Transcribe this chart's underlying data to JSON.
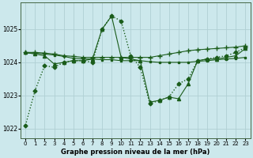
{
  "background_color": "#cce8ec",
  "grid_color": "#b0d0d4",
  "line_color": "#1a5c1a",
  "xlabel": "Graphe pression niveau de la mer (hPa)",
  "xlim": [
    -0.5,
    23.5
  ],
  "ylim": [
    1021.7,
    1025.8
  ],
  "yticks": [
    1022,
    1023,
    1024,
    1025
  ],
  "xticks": [
    0,
    1,
    2,
    3,
    4,
    5,
    6,
    7,
    8,
    9,
    10,
    11,
    12,
    13,
    14,
    15,
    16,
    17,
    18,
    19,
    20,
    21,
    22,
    23
  ],
  "series": [
    {
      "x": [
        0,
        1,
        2,
        3,
        4,
        5,
        6,
        7,
        8,
        9,
        10,
        11,
        12,
        13,
        14,
        15,
        16,
        17,
        18,
        19,
        20,
        21,
        22,
        23
      ],
      "y": [
        1022.1,
        1023.15,
        1023.9,
        1023.85,
        1024.0,
        1024.05,
        1024.05,
        1024.0,
        1025.0,
        1025.4,
        1025.25,
        1024.2,
        1023.85,
        1022.75,
        1022.85,
        1022.95,
        1023.35,
        1023.5,
        1024.05,
        1024.1,
        1024.15,
        1024.2,
        1024.3,
        1024.45
      ],
      "marker": "D",
      "markersize": 2.5,
      "linewidth": 1.0,
      "linestyle": ":"
    },
    {
      "x": [
        0,
        1,
        2,
        3,
        4,
        5,
        6,
        7,
        8,
        9,
        10,
        11,
        12,
        13,
        14,
        15,
        16,
        17,
        18,
        19,
        20,
        21,
        22,
        23
      ],
      "y": [
        1024.3,
        1024.3,
        1024.28,
        1024.25,
        1024.2,
        1024.18,
        1024.15,
        1024.15,
        1024.15,
        1024.15,
        1024.15,
        1024.15,
        1024.15,
        1024.15,
        1024.2,
        1024.25,
        1024.3,
        1024.35,
        1024.38,
        1024.4,
        1024.42,
        1024.44,
        1024.46,
        1024.5
      ],
      "marker": "+",
      "markersize": 4,
      "linewidth": 0.8,
      "linestyle": "-"
    },
    {
      "x": [
        0,
        1,
        2,
        3,
        4,
        5,
        6,
        7,
        8,
        9,
        10,
        11,
        12,
        13,
        14,
        15,
        16,
        17,
        18,
        19,
        20,
        21,
        22,
        23
      ],
      "y": [
        1024.28,
        1024.28,
        1024.25,
        1024.22,
        1024.18,
        1024.12,
        1024.1,
        1024.1,
        1024.08,
        1024.08,
        1024.05,
        1024.05,
        1024.05,
        1024.02,
        1024.0,
        1024.0,
        1024.0,
        1024.0,
        1024.03,
        1024.05,
        1024.08,
        1024.1,
        1024.12,
        1024.15
      ],
      "marker": "s",
      "markersize": 2,
      "linewidth": 0.8,
      "linestyle": "-"
    },
    {
      "x": [
        0,
        1,
        2,
        3,
        4,
        5,
        6,
        7,
        8,
        9,
        10,
        11,
        12,
        13,
        14,
        15,
        16,
        17,
        18,
        19,
        20,
        21,
        22,
        23
      ],
      "y": [
        1024.3,
        1024.25,
        1024.2,
        1023.95,
        1024.0,
        1024.05,
        1024.05,
        1024.1,
        1025.0,
        1025.4,
        1024.15,
        1024.1,
        1024.05,
        1022.8,
        1022.85,
        1022.95,
        1022.9,
        1023.35,
        1024.05,
        1024.1,
        1024.1,
        1024.15,
        1024.2,
        1024.42
      ],
      "marker": "^",
      "markersize": 3,
      "linewidth": 0.8,
      "linestyle": "-"
    }
  ]
}
